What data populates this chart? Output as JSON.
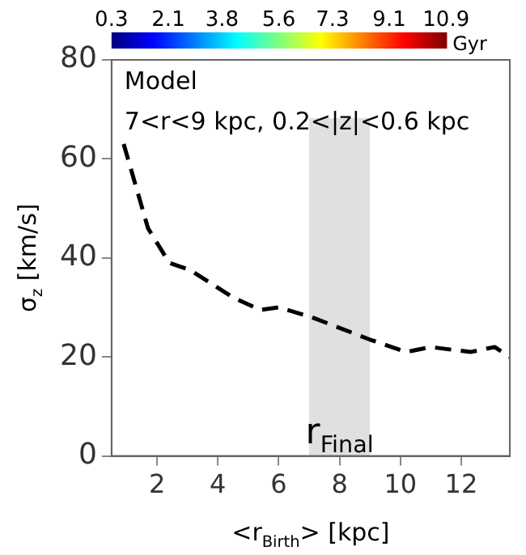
{
  "chart_data": {
    "type": "line",
    "xlabel": "<r$_{Birth}$> [kpc]",
    "ylabel": "σ$_{z}$ [km/s]",
    "clabel": "Gyr",
    "clim": [
      0.3,
      10.9
    ],
    "cticks": [
      0.3,
      2.1,
      3.8,
      5.6,
      7.3,
      9.1,
      10.9
    ],
    "xlim": [
      0.5,
      13.6
    ],
    "xticks": [
      2,
      4,
      6,
      8,
      10,
      12
    ],
    "ylim": [
      0,
      80
    ],
    "yticks": [
      0,
      20,
      40,
      60,
      80
    ],
    "series": [
      {
        "color": "#000000",
        "line_style": "dashed",
        "marker": "none",
        "x": [
          0.9,
          1.7,
          2.4,
          3.1,
          4.5,
          5.4,
          6.0,
          7.1,
          9.0,
          10.2,
          11.0,
          12.3,
          13.1,
          13.6
        ],
        "values": [
          63,
          46,
          39,
          37.5,
          32,
          29.5,
          30,
          28,
          23.5,
          21,
          22,
          21,
          22,
          20
        ]
      }
    ],
    "bands": [
      {
        "axis": "x",
        "from": 7,
        "to": 9,
        "label": "r$_{Final}$",
        "color": "#e0e0e0"
      }
    ],
    "annotations": [
      "Model",
      "7<r<9 kpc, 0.2<|z|<0.6 kpc"
    ],
    "grid": false,
    "legend": false
  }
}
